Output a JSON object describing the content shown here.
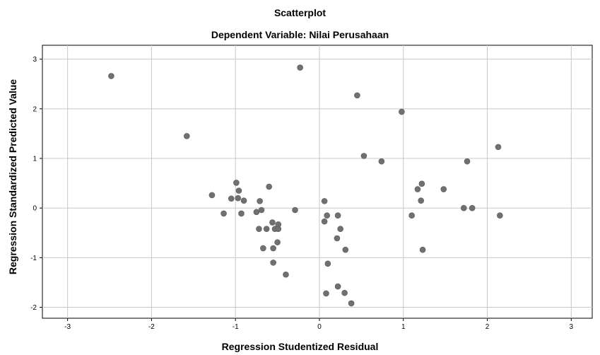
{
  "chart_data": {
    "type": "scatter",
    "title": "Scatterplot",
    "subtitle": "Dependent Variable: Nilai Perusahaan",
    "xlabel": "Regression Studentized Residual",
    "ylabel": "Regression Standardized Predicted Value",
    "xlim": [
      -3.3,
      3.25
    ],
    "ylim": [
      -2.22,
      3.28
    ],
    "xticks": [
      -3,
      -2,
      -1,
      0,
      1,
      2,
      3
    ],
    "yticks": [
      -2,
      -1,
      0,
      1,
      2,
      3
    ],
    "grid": true,
    "point_color": "#707070",
    "points": [
      {
        "x": -2.48,
        "y": 2.66
      },
      {
        "x": -0.23,
        "y": 2.83
      },
      {
        "x": 0.45,
        "y": 2.27
      },
      {
        "x": 0.98,
        "y": 1.94
      },
      {
        "x": -1.58,
        "y": 1.45
      },
      {
        "x": 2.13,
        "y": 1.23
      },
      {
        "x": 0.53,
        "y": 1.05
      },
      {
        "x": 0.74,
        "y": 0.94
      },
      {
        "x": 1.76,
        "y": 0.94
      },
      {
        "x": -0.99,
        "y": 0.51
      },
      {
        "x": -0.96,
        "y": 0.35
      },
      {
        "x": -0.6,
        "y": 0.43
      },
      {
        "x": 1.22,
        "y": 0.49
      },
      {
        "x": 1.17,
        "y": 0.38
      },
      {
        "x": 1.48,
        "y": 0.38
      },
      {
        "x": -1.28,
        "y": 0.26
      },
      {
        "x": -1.05,
        "y": 0.19
      },
      {
        "x": -0.97,
        "y": 0.2
      },
      {
        "x": -0.9,
        "y": 0.15
      },
      {
        "x": -0.71,
        "y": 0.14
      },
      {
        "x": 0.06,
        "y": 0.14
      },
      {
        "x": 1.21,
        "y": 0.15
      },
      {
        "x": -0.69,
        "y": -0.04
      },
      {
        "x": -0.75,
        "y": -0.08
      },
      {
        "x": -0.29,
        "y": -0.04
      },
      {
        "x": 1.72,
        "y": 0.0
      },
      {
        "x": 1.82,
        "y": 0.0
      },
      {
        "x": -1.14,
        "y": -0.11
      },
      {
        "x": -0.93,
        "y": -0.11
      },
      {
        "x": 0.09,
        "y": -0.15
      },
      {
        "x": 0.22,
        "y": -0.15
      },
      {
        "x": 1.1,
        "y": -0.15
      },
      {
        "x": 2.15,
        "y": -0.15
      },
      {
        "x": 0.06,
        "y": -0.27
      },
      {
        "x": -0.56,
        "y": -0.29
      },
      {
        "x": -0.49,
        "y": -0.33
      },
      {
        "x": -0.72,
        "y": -0.42
      },
      {
        "x": -0.63,
        "y": -0.42
      },
      {
        "x": -0.53,
        "y": -0.42
      },
      {
        "x": -0.49,
        "y": -0.42
      },
      {
        "x": 0.25,
        "y": -0.42
      },
      {
        "x": 0.21,
        "y": -0.61
      },
      {
        "x": -0.5,
        "y": -0.69
      },
      {
        "x": -0.67,
        "y": -0.81
      },
      {
        "x": -0.55,
        "y": -0.81
      },
      {
        "x": 0.31,
        "y": -0.84
      },
      {
        "x": 1.23,
        "y": -0.84
      },
      {
        "x": -0.55,
        "y": -1.1
      },
      {
        "x": 0.1,
        "y": -1.12
      },
      {
        "x": -0.4,
        "y": -1.34
      },
      {
        "x": 0.22,
        "y": -1.58
      },
      {
        "x": 0.08,
        "y": -1.72
      },
      {
        "x": 0.3,
        "y": -1.71
      },
      {
        "x": 0.38,
        "y": -1.92
      }
    ]
  }
}
